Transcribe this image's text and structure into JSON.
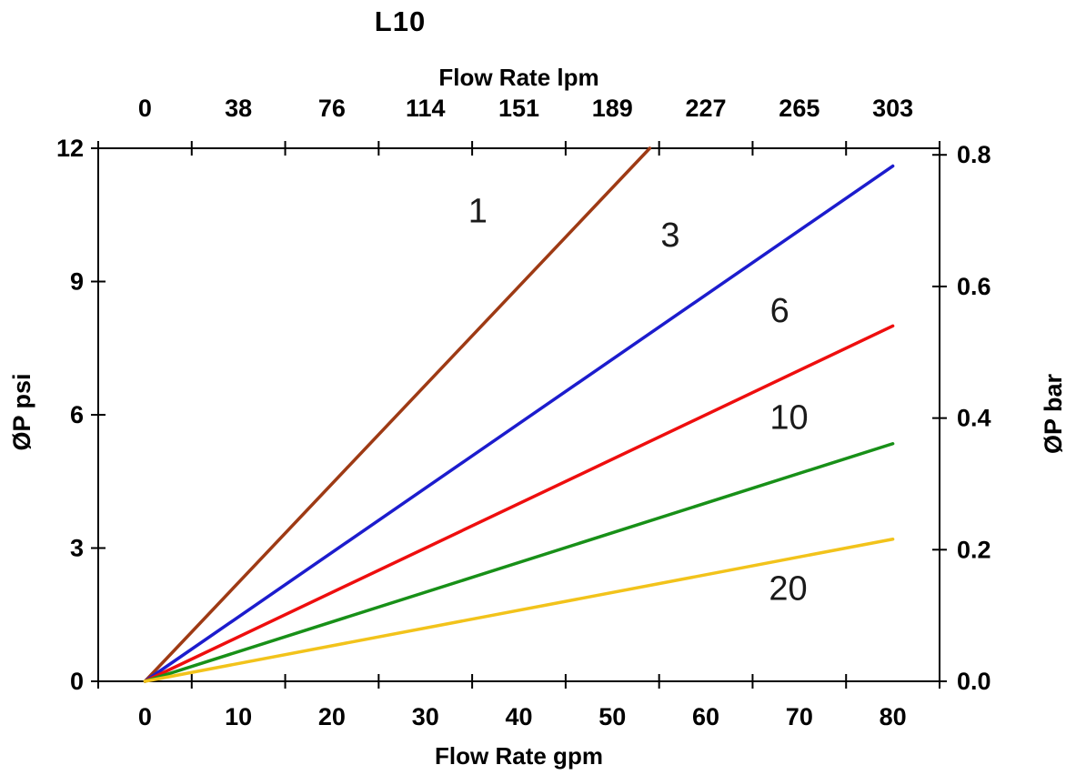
{
  "chart_data": {
    "type": "line",
    "title": "L10",
    "grid": false,
    "legend": false,
    "axes": {
      "bottom": {
        "label": "Flow Rate gpm",
        "ticks": [
          0,
          10,
          20,
          30,
          40,
          50,
          60,
          70,
          80
        ],
        "range": [
          0,
          80
        ]
      },
      "top": {
        "label": "Flow Rate lpm",
        "ticks": [
          0,
          38,
          76,
          114,
          151,
          189,
          227,
          265,
          303
        ]
      },
      "left": {
        "label": "ØP psi",
        "ticks": [
          0,
          3,
          6,
          9,
          12
        ],
        "range": [
          0,
          12
        ]
      },
      "right": {
        "label": "ØP bar",
        "tick_labels": [
          "0.0",
          "0.2",
          "0.4",
          "0.6",
          "0.8"
        ],
        "tick_values": [
          0.0,
          0.2,
          0.4,
          0.6,
          0.8
        ],
        "range": [
          0,
          0.81
        ]
      }
    },
    "series": [
      {
        "name": "1",
        "color": "#9e3a14",
        "points": [
          [
            0,
            0
          ],
          [
            54,
            12
          ]
        ],
        "label": {
          "text": "1",
          "x": 35.6,
          "y": 10.6
        }
      },
      {
        "name": "3",
        "color": "#1c1ccd",
        "points": [
          [
            0,
            0
          ],
          [
            80,
            11.6
          ]
        ],
        "label": {
          "text": "3",
          "x": 56.2,
          "y": 10.05
        }
      },
      {
        "name": "6",
        "color": "#ee0e0e",
        "points": [
          [
            0,
            0
          ],
          [
            80,
            8.0
          ]
        ],
        "label": {
          "text": "6",
          "x": 67.9,
          "y": 8.35
        }
      },
      {
        "name": "10",
        "color": "#189018",
        "points": [
          [
            0,
            0
          ],
          [
            80,
            5.35
          ]
        ],
        "label": {
          "text": "10",
          "x": 68.9,
          "y": 5.95
        }
      },
      {
        "name": "20",
        "color": "#f2c31b",
        "points": [
          [
            0,
            0
          ],
          [
            80,
            3.2
          ]
        ],
        "label": {
          "text": "20",
          "x": 68.8,
          "y": 2.1
        }
      }
    ]
  }
}
